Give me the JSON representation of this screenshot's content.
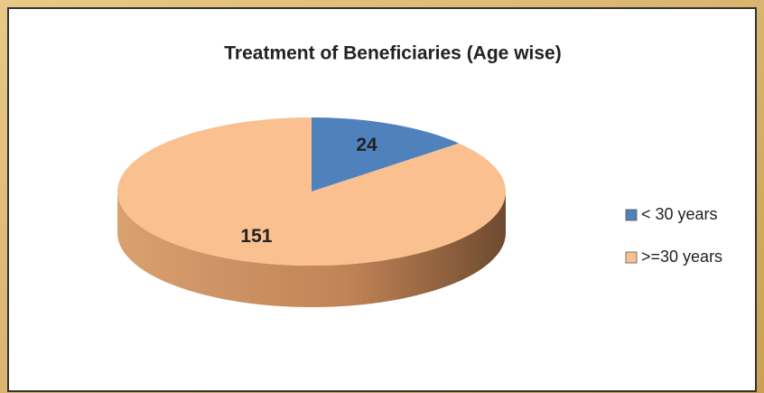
{
  "chart_data": {
    "type": "pie",
    "title": "Treatment of Beneficiaries (Age wise)",
    "categories": [
      "< 30 years",
      ">=30 years"
    ],
    "values": [
      24,
      151
    ],
    "colors": [
      "#4f81bd",
      "#fac08f"
    ],
    "legend": "right"
  }
}
